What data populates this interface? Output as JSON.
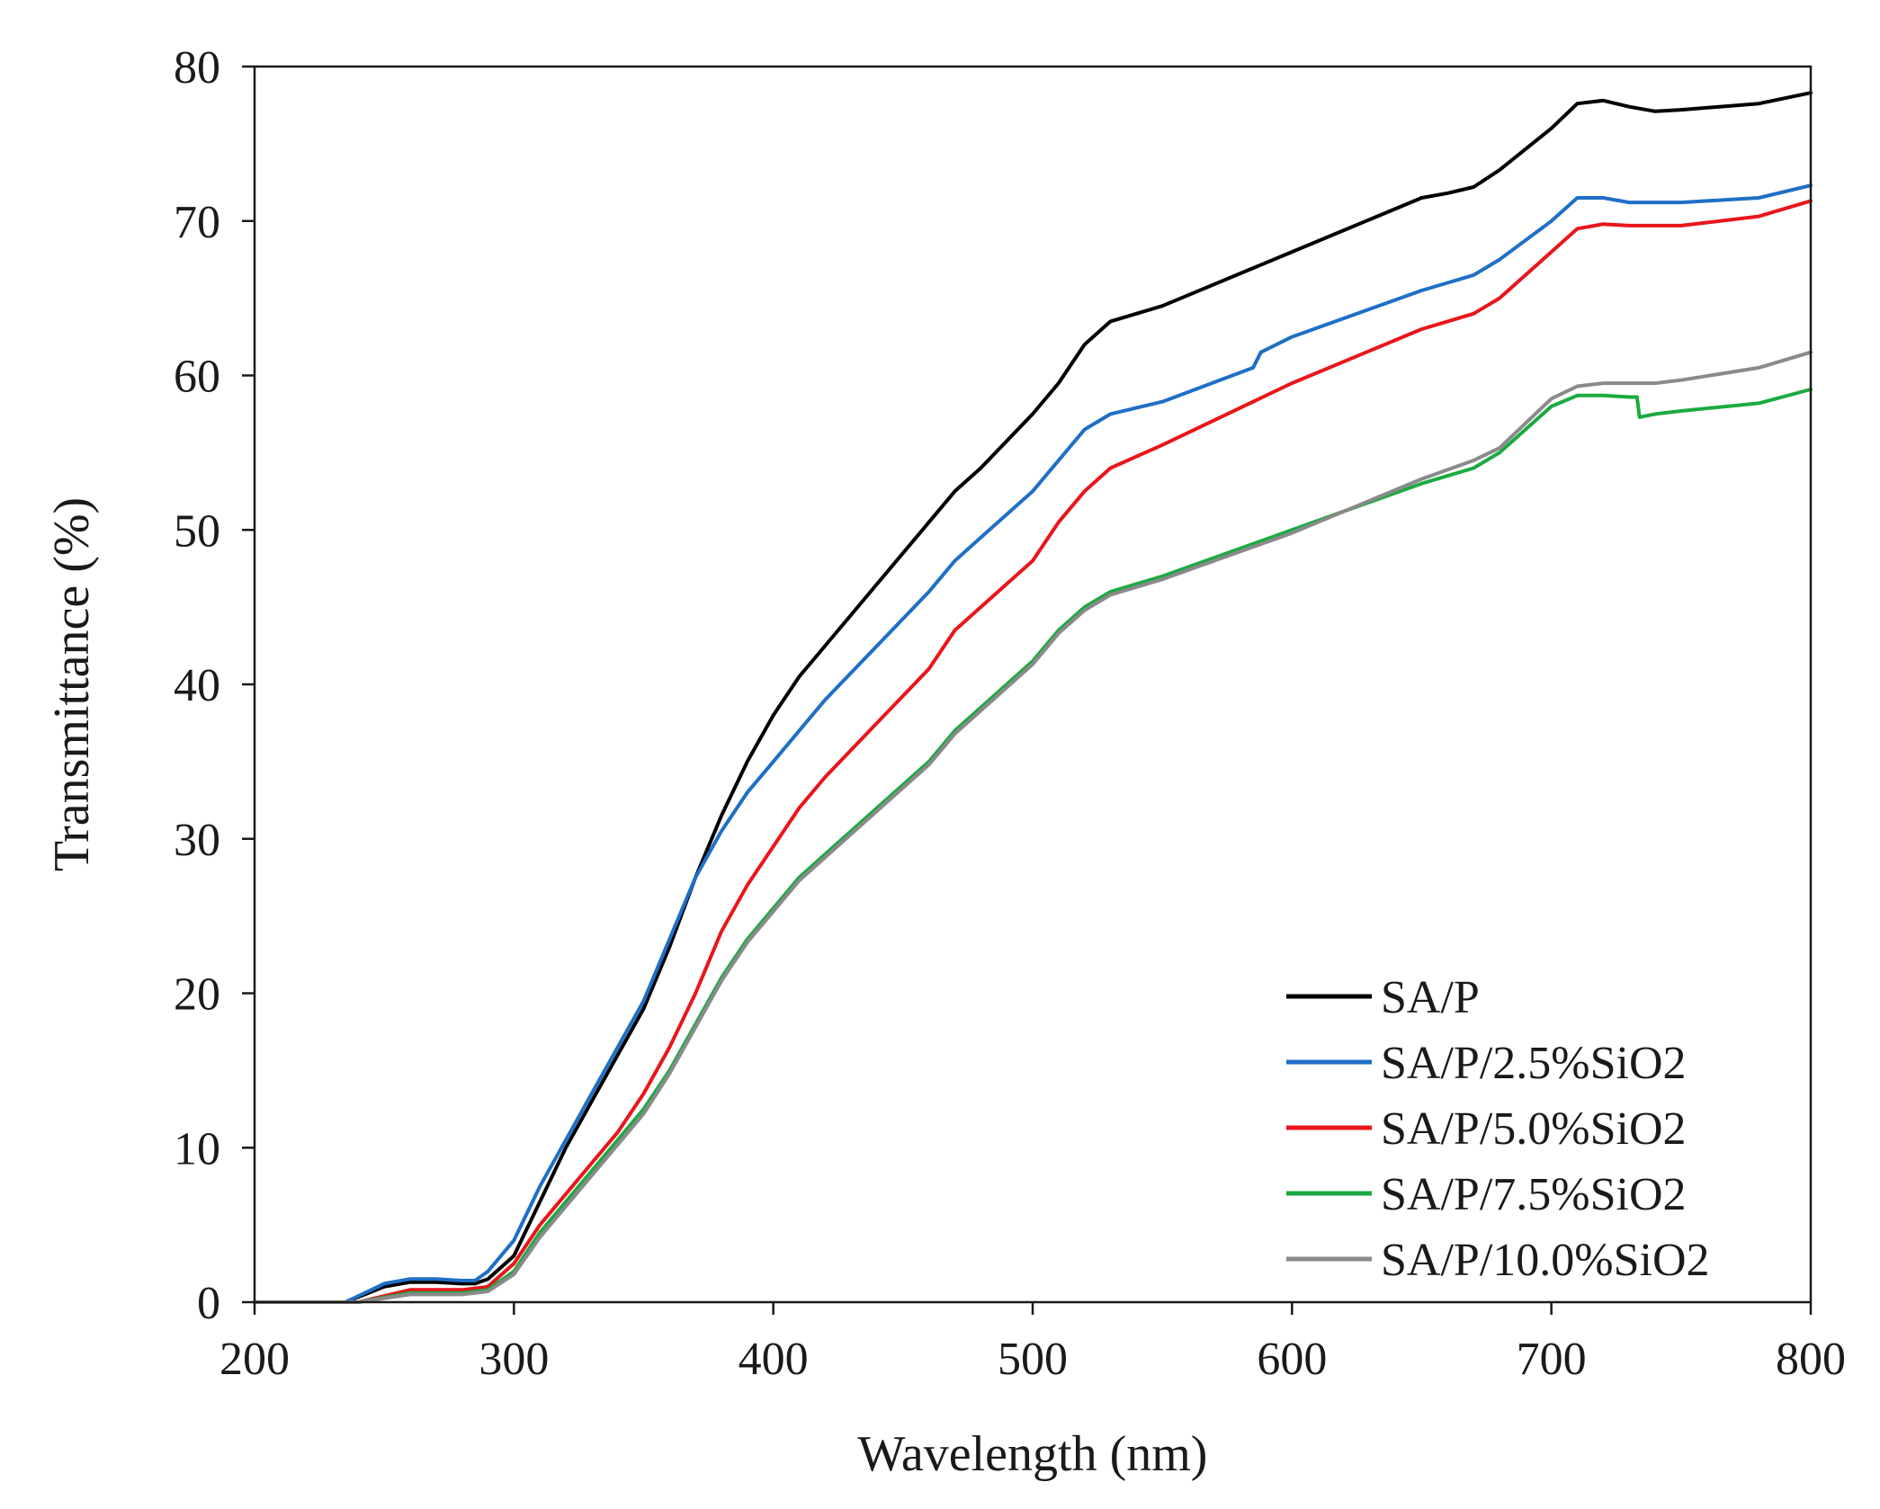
{
  "chart_data": {
    "type": "line",
    "xlabel": "Wavelength (nm)",
    "ylabel": "Transmittance (%)",
    "xlim": [
      200,
      800
    ],
    "ylim": [
      0,
      80
    ],
    "xticks": [
      200,
      300,
      400,
      500,
      600,
      700,
      800
    ],
    "yticks": [
      0,
      10,
      20,
      30,
      40,
      50,
      60,
      70,
      80
    ],
    "grid": false,
    "legend_position": "bottom-right",
    "series": [
      {
        "name": "SA/P",
        "color": "#000000",
        "x": [
          200,
          235,
          250,
          260,
          270,
          280,
          285,
          290,
          300,
          310,
          320,
          330,
          340,
          350,
          360,
          370,
          380,
          390,
          400,
          410,
          420,
          440,
          460,
          470,
          480,
          500,
          510,
          520,
          530,
          550,
          600,
          650,
          660,
          670,
          680,
          700,
          710,
          720,
          730,
          740,
          750,
          780,
          800
        ],
        "y": [
          0,
          0,
          1.0,
          1.3,
          1.3,
          1.2,
          1.2,
          1.5,
          3,
          6.5,
          10,
          13,
          16,
          19,
          23,
          27.5,
          31.5,
          35,
          38,
          40.5,
          42.5,
          46.5,
          50.5,
          52.5,
          54,
          57.5,
          59.5,
          62,
          63.5,
          64.5,
          68,
          71.5,
          71.8,
          72.2,
          73.3,
          76,
          77.6,
          77.8,
          77.4,
          77.1,
          77.2,
          77.6,
          78.3
        ]
      },
      {
        "name": "SA/P/2.5%SiO2",
        "color": "#1f6fc6",
        "x": [
          200,
          235,
          250,
          260,
          270,
          280,
          285,
          290,
          300,
          310,
          320,
          330,
          340,
          350,
          360,
          370,
          380,
          390,
          400,
          410,
          420,
          440,
          460,
          470,
          480,
          500,
          510,
          520,
          530,
          550,
          585,
          588,
          600,
          650,
          660,
          670,
          680,
          700,
          710,
          720,
          730,
          740,
          750,
          780,
          800
        ],
        "y": [
          0,
          0,
          1.2,
          1.5,
          1.5,
          1.4,
          1.4,
          2.0,
          4,
          7.5,
          10.5,
          13.5,
          16.5,
          19.5,
          23.5,
          27.5,
          30.5,
          33,
          35,
          37,
          39,
          42.5,
          46,
          48,
          49.5,
          52.5,
          54.5,
          56.5,
          57.5,
          58.3,
          60.5,
          61.5,
          62.5,
          65.5,
          66,
          66.5,
          67.5,
          70,
          71.5,
          71.5,
          71.2,
          71.2,
          71.2,
          71.5,
          72.3
        ]
      },
      {
        "name": "SA/P/5.0%SiO2",
        "color": "#e8161b",
        "x": [
          200,
          240,
          260,
          280,
          290,
          300,
          310,
          320,
          330,
          340,
          350,
          360,
          370,
          380,
          390,
          400,
          410,
          420,
          440,
          460,
          470,
          480,
          500,
          510,
          520,
          530,
          550,
          600,
          650,
          660,
          670,
          680,
          700,
          710,
          720,
          730,
          740,
          750,
          780,
          800
        ],
        "y": [
          0,
          0,
          0.8,
          0.8,
          1.0,
          2.5,
          5,
          7,
          9,
          11,
          13.5,
          16.5,
          20,
          24,
          27,
          29.5,
          32,
          34,
          37.5,
          41,
          43.5,
          45,
          48,
          50.5,
          52.5,
          54,
          55.5,
          59.5,
          63,
          63.5,
          64,
          65,
          68,
          69.5,
          69.8,
          69.7,
          69.7,
          69.7,
          70.3,
          71.3
        ]
      },
      {
        "name": "SA/P/7.5%SiO2",
        "color": "#1aab40",
        "x": [
          200,
          240,
          260,
          280,
          290,
          300,
          310,
          320,
          330,
          340,
          350,
          360,
          370,
          380,
          390,
          400,
          410,
          420,
          440,
          460,
          470,
          480,
          500,
          510,
          520,
          530,
          550,
          600,
          650,
          670,
          680,
          700,
          710,
          720,
          730,
          733,
          734,
          740,
          750,
          780,
          800
        ],
        "y": [
          0,
          0,
          0.6,
          0.6,
          0.8,
          2,
          4.5,
          6.5,
          8.5,
          10.5,
          12.5,
          15,
          18,
          21,
          23.5,
          25.5,
          27.5,
          29,
          32,
          35,
          37,
          38.5,
          41.5,
          43.5,
          45,
          46,
          47,
          50,
          53,
          54,
          55,
          58,
          58.7,
          58.7,
          58.6,
          58.6,
          57.3,
          57.5,
          57.7,
          58.2,
          59.1
        ]
      },
      {
        "name": "SA/P/10.0%SiO2",
        "color": "#8a8a8a",
        "x": [
          200,
          240,
          260,
          280,
          290,
          300,
          310,
          320,
          330,
          340,
          350,
          360,
          370,
          380,
          390,
          400,
          410,
          420,
          440,
          460,
          470,
          480,
          500,
          510,
          520,
          530,
          550,
          600,
          650,
          670,
          680,
          700,
          710,
          720,
          730,
          740,
          750,
          780,
          800
        ],
        "y": [
          0,
          0,
          0.5,
          0.5,
          0.7,
          1.8,
          4.2,
          6.2,
          8.2,
          10.2,
          12.2,
          14.8,
          17.8,
          20.8,
          23.3,
          25.3,
          27.3,
          28.8,
          31.8,
          34.8,
          36.8,
          38.3,
          41.3,
          43.3,
          44.8,
          45.8,
          46.8,
          49.8,
          53.3,
          54.5,
          55.3,
          58.5,
          59.3,
          59.5,
          59.5,
          59.5,
          59.7,
          60.5,
          61.5
        ]
      }
    ]
  }
}
